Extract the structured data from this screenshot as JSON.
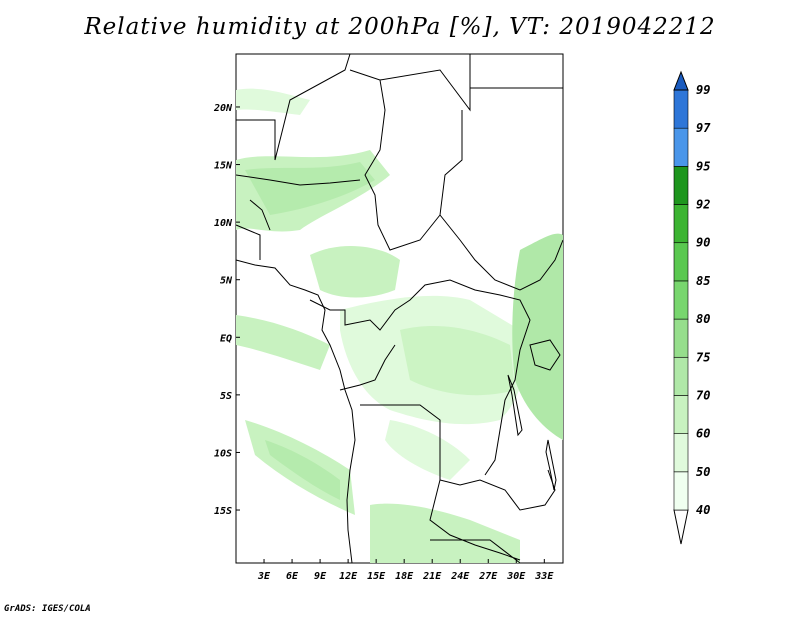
{
  "title": "Relative humidity at 200hPa [%], VT: 2019042212",
  "credit": "GrADS: IGES/COLA",
  "map": {
    "lat_labels": [
      "20N",
      "15N",
      "10N",
      "5N",
      "EQ",
      "5S",
      "10S",
      "15S"
    ],
    "lon_labels": [
      "3E",
      "6E",
      "9E",
      "12E",
      "15E",
      "18E",
      "21E",
      "24E",
      "27E",
      "30E",
      "33E"
    ],
    "lat_values": [
      20,
      15,
      10,
      5,
      0,
      -5,
      -10,
      -15
    ],
    "lon_values": [
      3,
      6,
      9,
      12,
      15,
      18,
      21,
      24,
      27,
      30,
      33
    ],
    "lon_range": [
      0,
      35
    ],
    "lat_range": [
      -19.6,
      24.6
    ]
  },
  "colorbar": {
    "levels": [
      "40",
      "50",
      "60",
      "70",
      "75",
      "80",
      "85",
      "90",
      "92",
      "95",
      "97",
      "99"
    ],
    "colors": [
      "#f0fff0",
      "#e0fadc",
      "#c8f2c0",
      "#b0e8a8",
      "#96de8c",
      "#78d66e",
      "#5ac850",
      "#3cb432",
      "#1e961e",
      "#4a96ea",
      "#2e76d8",
      "#1a5cc0"
    ]
  },
  "legend_title": ""
}
